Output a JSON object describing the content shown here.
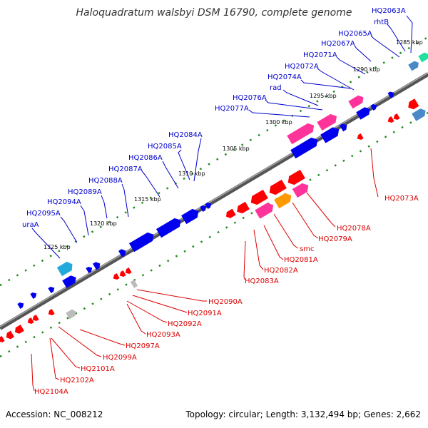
{
  "title": "Haloquadratum walsbyi DSM 16790, complete genome",
  "footer": {
    "accession": "Accession: NC_008212",
    "summary": "Topology: circular; Length: 3,132,494 bp; Genes: 2,662"
  },
  "colors": {
    "backbone": "#666666",
    "tick_dots": "#228b22",
    "plus_label": "#0000cc",
    "minus_label": "#dd0000",
    "leader_plus": "#0000cc",
    "leader_minus": "#dd0000"
  },
  "scale_labels": [
    "1285 kbp",
    "1290 kbp",
    "1295 kbp",
    "1300 kbp",
    "1305 kbp",
    "1310 kbp",
    "1315 kbp",
    "1320 kbp",
    "1325 kbp"
  ],
  "plus_strand_labels": [
    "HQ2063A",
    "rhtB",
    "HQ2065A",
    "HQ2067A",
    "HQ2071A",
    "HQ2072A",
    "HQ2074A",
    "rad",
    "HQ2076A",
    "HQ2077A",
    "HQ2084A",
    "HQ2085A",
    "HQ2086A",
    "HQ2087A",
    "HQ2088A",
    "HQ2089A",
    "HQ2094A",
    "HQ2095A",
    "uraA"
  ],
  "minus_strand_labels": [
    "HQ2073A",
    "HQ2078A",
    "HQ2079A",
    "smc",
    "HQ2081A",
    "HQ2082A",
    "HQ2083A",
    "HQ2090A",
    "HQ2091A",
    "HQ2092A",
    "HQ2093A",
    "HQ2097A",
    "HQ2099A",
    "HQ2101A",
    "HQ2102A",
    "HQ2104A"
  ]
}
